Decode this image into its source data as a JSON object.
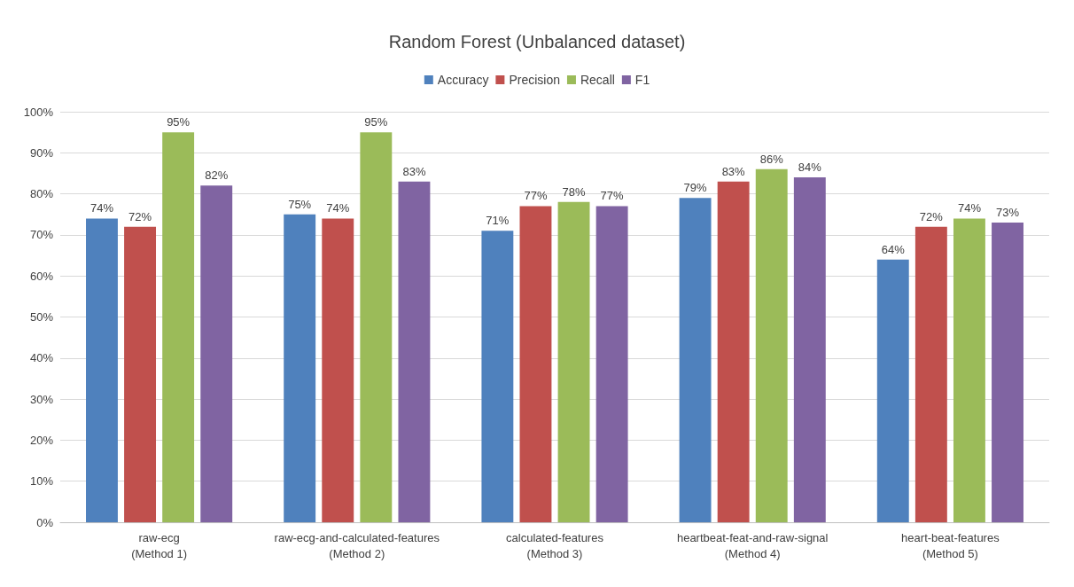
{
  "chart_data": {
    "type": "bar",
    "title": "Random Forest (Unbalanced dataset)",
    "categories": [
      "raw-ecg\n(Method 1)",
      "raw-ecg-and-calculated-features\n(Method 2)",
      "calculated-features\n(Method 3)",
      "heartbeat-feat-and-raw-signal\n(Method 4)",
      "heart-beat-features\n(Method 5)"
    ],
    "series": [
      {
        "name": "Accuracy",
        "color": "#4f81bd",
        "values": [
          74,
          75,
          71,
          79,
          64
        ],
        "value_labels": [
          "74%",
          "75%",
          "71%",
          "79%",
          "64%"
        ]
      },
      {
        "name": "Precision",
        "color": "#c0504d",
        "values": [
          72,
          74,
          77,
          83,
          72
        ],
        "value_labels": [
          "72%",
          "74%",
          "77%",
          "83%",
          "72%"
        ]
      },
      {
        "name": "Recall",
        "color": "#9bbb59",
        "values": [
          95,
          95,
          78,
          86,
          74
        ],
        "value_labels": [
          "95%",
          "95%",
          "78%",
          "86%",
          "74%"
        ]
      },
      {
        "name": "F1",
        "color": "#8064a2",
        "values": [
          82,
          83,
          77,
          84,
          73
        ],
        "value_labels": [
          "82%",
          "83%",
          "77%",
          "84%",
          "73%"
        ]
      }
    ],
    "ylim": [
      0,
      100
    ],
    "yticks": [
      {
        "value": 0,
        "label": "0%"
      },
      {
        "value": 10,
        "label": "10%"
      },
      {
        "value": 20,
        "label": "20%"
      },
      {
        "value": 30,
        "label": "30%"
      },
      {
        "value": 40,
        "label": "40%"
      },
      {
        "value": 50,
        "label": "50%"
      },
      {
        "value": 60,
        "label": "60%"
      },
      {
        "value": 70,
        "label": "70%"
      },
      {
        "value": 80,
        "label": "80%"
      },
      {
        "value": 90,
        "label": "90%"
      },
      {
        "value": 100,
        "label": "100%"
      }
    ],
    "grid": "y",
    "legend": "top"
  }
}
